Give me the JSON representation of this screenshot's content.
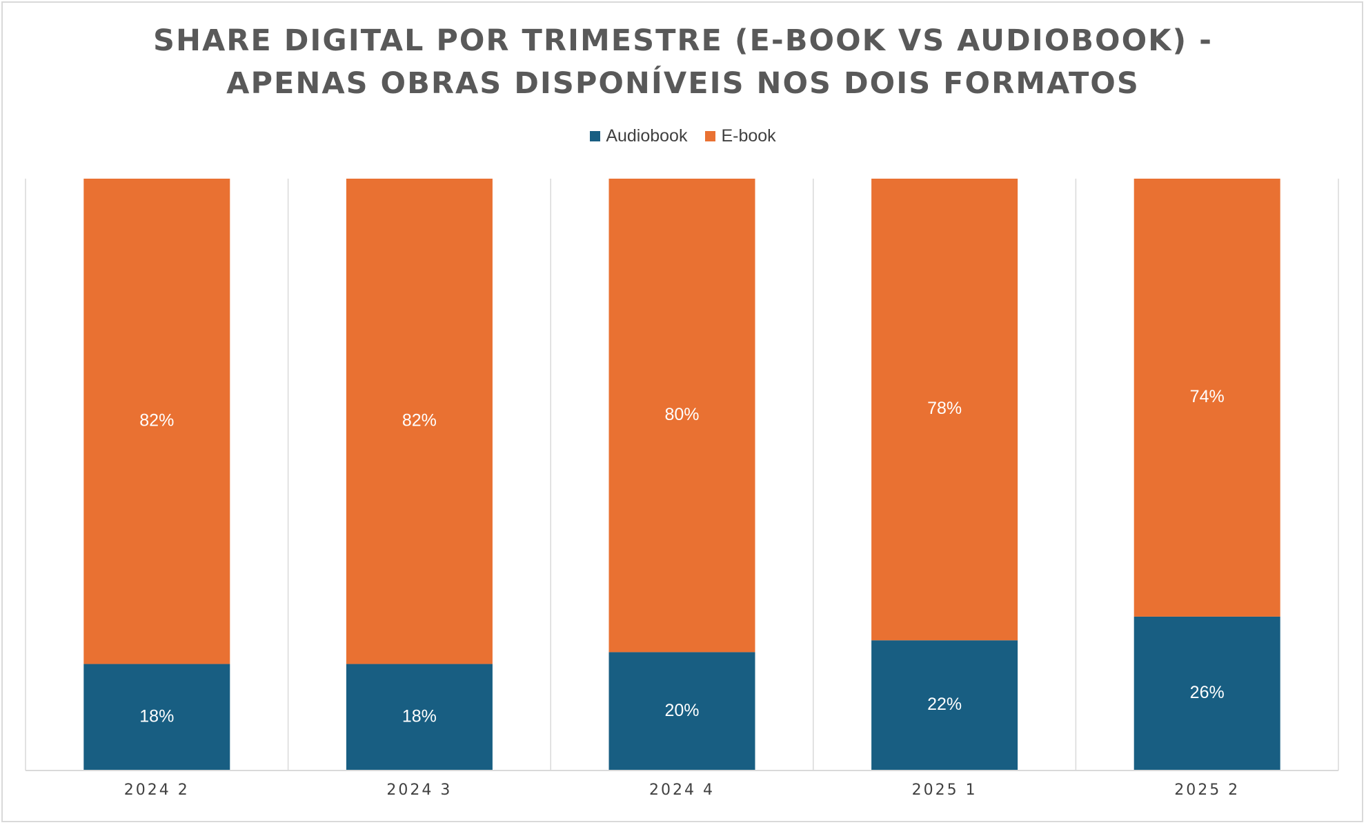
{
  "chart_data": {
    "type": "bar",
    "stacked": true,
    "normalized_percent": true,
    "title_lines": [
      "SHARE DIGITAL POR TRIMESTRE (E-BOOK VS AUDIOBOOK) -",
      "APENAS OBRAS DISPONÍVEIS NOS DOIS FORMATOS"
    ],
    "categories": [
      "2024  2",
      "2024  3",
      "2024  4",
      "2025  1",
      "2025  2"
    ],
    "series": [
      {
        "name": "Audiobook",
        "color": "#185e82",
        "values": [
          0.18,
          0.18,
          0.2,
          0.22,
          0.26
        ],
        "labels": [
          "18%",
          "18%",
          "20%",
          "22%",
          "26%"
        ]
      },
      {
        "name": "E-book",
        "color": "#e97132",
        "values": [
          0.82,
          0.82,
          0.8,
          0.78,
          0.74
        ],
        "labels": [
          "82%",
          "82%",
          "80%",
          "78%",
          "74%"
        ]
      }
    ],
    "ylim": [
      0,
      1
    ],
    "xlabel": "",
    "ylabel": "",
    "legend_position": "top",
    "grid": "vertical separators between categories",
    "axis_color": "#d9d9d9"
  }
}
